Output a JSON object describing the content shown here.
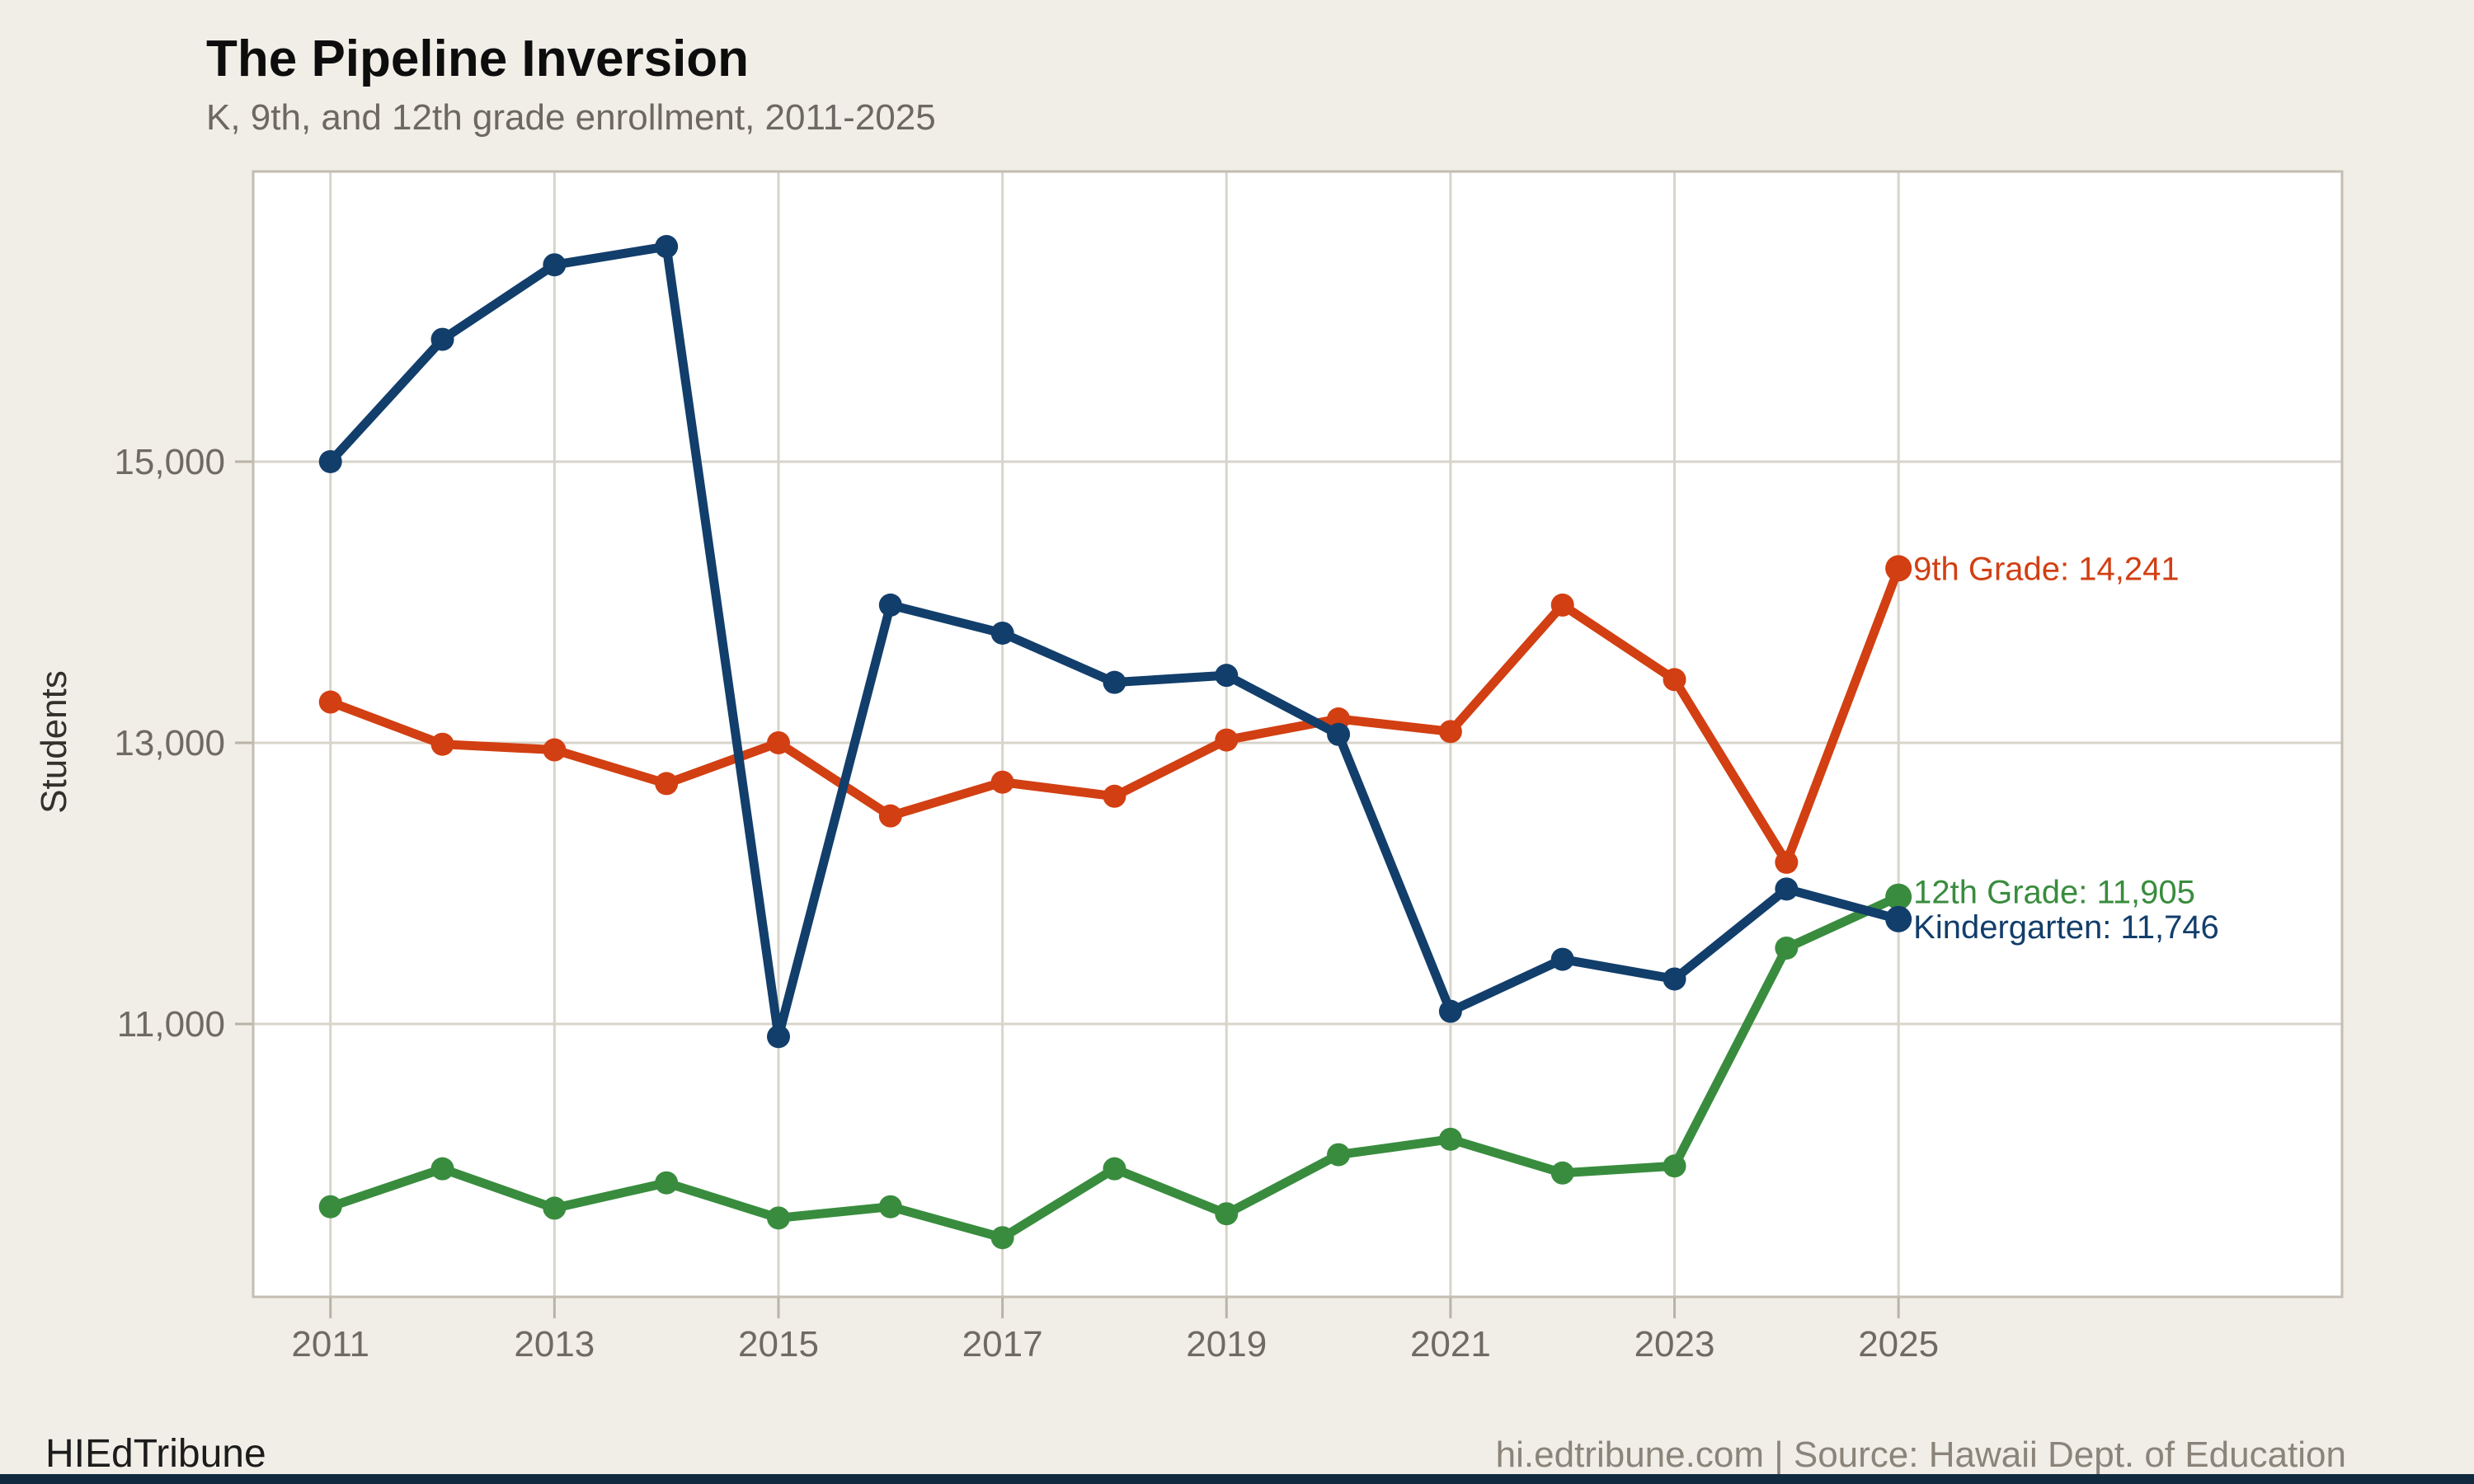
{
  "header": {
    "title": "The Pipeline Inversion",
    "subtitle": "K, 9th, and 12th grade enrollment, 2011-2025"
  },
  "footer": {
    "brand": "HIEdTribune",
    "source": "hi.edtribune.com | Source: Hawaii Dept. of Education"
  },
  "colors": {
    "page_bg": "#f1eee7",
    "plot_bg": "#ffffff",
    "gridline": "#d9d4cb",
    "plot_border": "#c3bdb2",
    "tick_mark": "#b9b3a7",
    "tick_text": "#6f6a62",
    "kindergarten": "#123e6b",
    "ninth_grade": "#d23f12",
    "twelfth_grade": "#398c3e"
  },
  "chart_data": {
    "type": "line",
    "title": "The Pipeline Inversion",
    "subtitle": "K, 9th, and 12th grade enrollment, 2011-2025",
    "xlabel": "",
    "ylabel": "Students",
    "grid": true,
    "legend": "end-of-line labels",
    "x": [
      2011,
      2012,
      2013,
      2014,
      2015,
      2016,
      2017,
      2018,
      2019,
      2020,
      2021,
      2022,
      2023,
      2024,
      2025
    ],
    "series": [
      {
        "name": "12th Grade",
        "color": "#398c3e",
        "end_label": "12th Grade: 11,905",
        "end_value": 11905,
        "label_dy": -6,
        "values": [
          9700,
          9970,
          9690,
          9870,
          9620,
          9700,
          9480,
          9970,
          9650,
          10070,
          10180,
          9940,
          9990,
          11540,
          11905
        ]
      },
      {
        "name": "9th Grade",
        "color": "#d23f12",
        "end_label": "9th Grade: 14,241",
        "end_value": 14241,
        "label_dy": 0,
        "values": [
          13290,
          12990,
          12950,
          12710,
          13000,
          12480,
          12720,
          12620,
          13020,
          13170,
          13080,
          13980,
          13450,
          12150,
          14241
        ]
      },
      {
        "name": "Kindergarten",
        "color": "#123e6b",
        "end_label": "Kindergarten: 11,746",
        "end_value": 11746,
        "label_dy": 9,
        "values": [
          15000,
          15870,
          16400,
          16530,
          10910,
          13980,
          13780,
          13430,
          13480,
          13060,
          11090,
          11460,
          11320,
          11960,
          11746
        ]
      }
    ],
    "x_ticks": [
      2011,
      2013,
      2015,
      2017,
      2019,
      2021,
      2023,
      2025
    ],
    "y_ticks": [
      11000,
      13000,
      15000
    ],
    "y_tick_labels": [
      "11,000",
      "13,000",
      "15,000"
    ],
    "xlim": [
      2010.31,
      2028.96
    ],
    "ylim": [
      9059,
      17064
    ]
  }
}
